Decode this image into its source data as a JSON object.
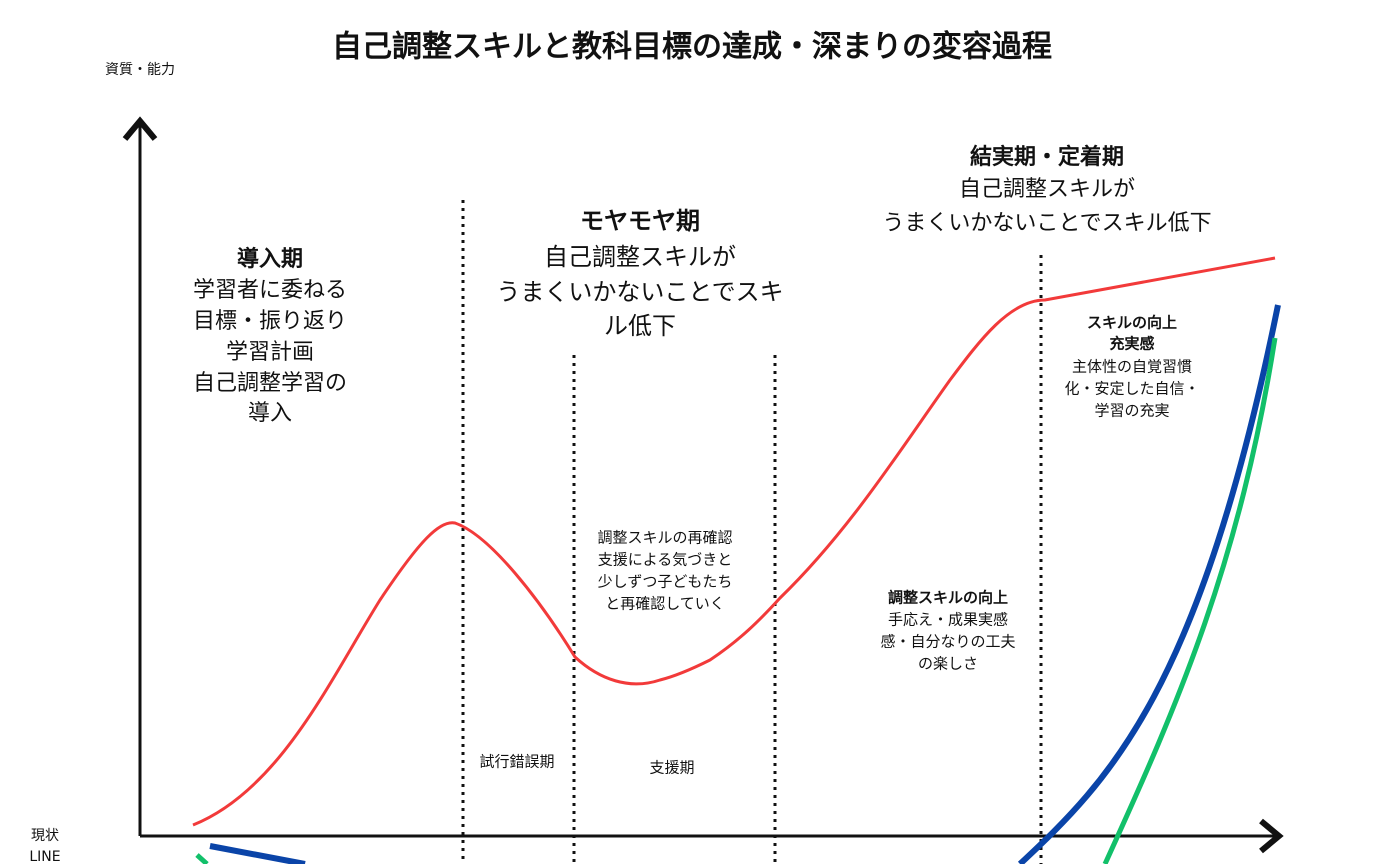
{
  "title": "自己調整スキルと教科目標の達成・深まりの変容過程",
  "y_axis_label": "資質・能力",
  "baseline_label": [
    "現状",
    "LINE"
  ],
  "phases": [
    {
      "heading": "導入期",
      "lines": [
        "学習者に委ねる",
        "目標・振り返り",
        "学習計画",
        "自己調整学習の",
        "導入"
      ]
    },
    {
      "heading": "モヤモヤ期",
      "lines": [
        "自己調整スキルが",
        "うまくいかないことでスキ",
        "ル低下"
      ]
    },
    {
      "heading": "結実期・定着期",
      "lines": [
        "自己調整スキルが",
        "うまくいかないことでスキル低下"
      ]
    }
  ],
  "sub_periods": [
    "試行錯誤期",
    "支援期"
  ],
  "annotations": [
    {
      "lines": [
        "調整スキルの再確認",
        "支援による気づきと",
        "少しずつ子どもたち",
        "と再確認していく"
      ]
    },
    {
      "heading": "調整スキルの向上",
      "lines": [
        "手応え・成果実感",
        "感・自分なりの工夫",
        "の楽しさ"
      ]
    },
    {
      "heading": [
        "スキルの向上",
        "充実感"
      ],
      "lines": [
        "主体性の自覚習慣",
        "化・安定した自信・",
        "学習の充実"
      ]
    }
  ]
}
